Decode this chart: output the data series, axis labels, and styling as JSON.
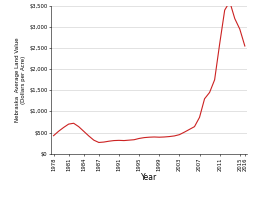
{
  "title": "",
  "xlabel": "Year",
  "ylabel": "Nebraska  Average Land Value\n(Dollars per Acre)",
  "years": [
    1978,
    1979,
    1980,
    1981,
    1982,
    1983,
    1984,
    1985,
    1986,
    1987,
    1988,
    1989,
    1990,
    1991,
    1992,
    1993,
    1994,
    1995,
    1996,
    1997,
    1998,
    1999,
    2000,
    2001,
    2002,
    2003,
    2004,
    2005,
    2006,
    2007,
    2008,
    2009,
    2010,
    2011,
    2012,
    2013,
    2014,
    2015,
    2016
  ],
  "values": [
    425,
    530,
    620,
    700,
    720,
    640,
    530,
    420,
    320,
    265,
    275,
    295,
    310,
    315,
    310,
    320,
    330,
    360,
    380,
    390,
    395,
    390,
    395,
    405,
    420,
    450,
    510,
    575,
    640,
    860,
    1300,
    1450,
    1750,
    2600,
    3400,
    3600,
    3200,
    2950,
    2550
  ],
  "line_color": "#cc2222",
  "line_width": 0.8,
  "ylim_max": 3500,
  "yticks": [
    0,
    500,
    1000,
    1500,
    2000,
    2500,
    3000,
    3500
  ],
  "ytick_labels": [
    "$0",
    "$500",
    "$1,000",
    "$1,500",
    "$2,000",
    "$2,500",
    "$3,000",
    "$3,500"
  ],
  "xtick_positions": [
    1978,
    1981,
    1984,
    1987,
    1991,
    1995,
    1999,
    2003,
    2007,
    2011,
    2015,
    2016
  ],
  "grid_color": "#cccccc",
  "bg_color": "#ffffff",
  "ylabel_fontsize": 4.0,
  "xlabel_fontsize": 5.5,
  "tick_fontsize": 3.8
}
